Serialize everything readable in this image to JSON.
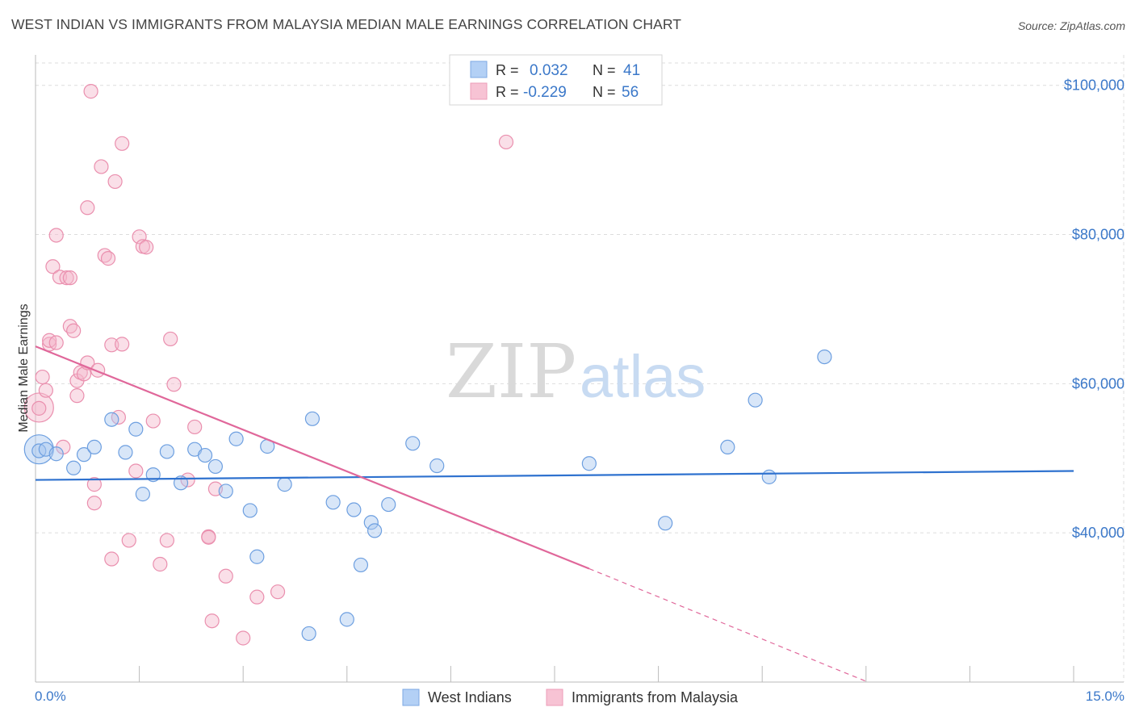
{
  "title": "WEST INDIAN VS IMMIGRANTS FROM MALAYSIA MEDIAN MALE EARNINGS CORRELATION CHART",
  "source": "Source: ZipAtlas.com",
  "watermark": {
    "zip": "ZIP",
    "atlas": "atlas"
  },
  "colors": {
    "blue_fill": "#a9c8f0",
    "blue_stroke": "#6d9fe0",
    "blue_line": "#2f72cf",
    "pink_fill": "#f5b8cb",
    "pink_stroke": "#ea8fae",
    "pink_line": "#e0679a",
    "tick_text": "#3b78c9",
    "grid": "#dddddd"
  },
  "legend": {
    "rows": [
      {
        "r_label": "R =",
        "r_value": "0.032",
        "n_label": "N =",
        "n_value": "41"
      },
      {
        "r_label": "R =",
        "r_value": "-0.229",
        "n_label": "N =",
        "n_value": "56"
      }
    ]
  },
  "chart_data": {
    "type": "scatter",
    "xlabel": "",
    "ylabel": "Median Male Earnings",
    "xlim": [
      0,
      15
    ],
    "ylim": [
      20000,
      103000
    ],
    "x_tick_labels": [
      "0.0%",
      "15.0%"
    ],
    "y_ticks": [
      40000,
      60000,
      80000,
      100000
    ],
    "y_tick_labels": [
      "$40,000",
      "$60,000",
      "$80,000",
      "$100,000"
    ],
    "grid": true,
    "legend_position": "top-center",
    "series": [
      {
        "name": "West Indians",
        "color": "blue",
        "trend": {
          "x": [
            0,
            15
          ],
          "y": [
            47100,
            48300
          ]
        },
        "points": [
          [
            0.05,
            51000
          ],
          [
            0.15,
            51200
          ],
          [
            0.3,
            50600
          ],
          [
            0.55,
            48700
          ],
          [
            0.7,
            50500
          ],
          [
            0.85,
            51500
          ],
          [
            1.1,
            55200
          ],
          [
            1.3,
            50800
          ],
          [
            1.45,
            53900
          ],
          [
            1.55,
            45200
          ],
          [
            1.7,
            47800
          ],
          [
            1.9,
            50900
          ],
          [
            2.1,
            46700
          ],
          [
            2.3,
            51200
          ],
          [
            2.45,
            50400
          ],
          [
            2.6,
            48900
          ],
          [
            2.75,
            45600
          ],
          [
            2.9,
            52600
          ],
          [
            3.1,
            43000
          ],
          [
            3.2,
            36800
          ],
          [
            3.35,
            51600
          ],
          [
            3.6,
            46500
          ],
          [
            3.95,
            26500
          ],
          [
            4.0,
            55300
          ],
          [
            4.3,
            44100
          ],
          [
            4.5,
            28400
          ],
          [
            4.6,
            43100
          ],
          [
            4.7,
            35700
          ],
          [
            4.85,
            41400
          ],
          [
            4.9,
            40300
          ],
          [
            5.1,
            43800
          ],
          [
            5.45,
            52000
          ],
          [
            5.8,
            49000
          ],
          [
            8.0,
            49300
          ],
          [
            9.1,
            41300
          ],
          [
            10.0,
            51500
          ],
          [
            10.4,
            57800
          ],
          [
            10.6,
            47500
          ],
          [
            11.4,
            63600
          ]
        ],
        "large_points": [
          [
            0.05,
            51200
          ]
        ]
      },
      {
        "name": "Immigrants from Malaysia",
        "color": "pink",
        "trend": {
          "x": [
            0,
            8.0
          ],
          "y": [
            65000,
            35200
          ]
        },
        "trend_dashed": {
          "x": [
            8.0,
            12.0
          ],
          "y": [
            35200,
            20100
          ]
        },
        "points": [
          [
            0.05,
            56700
          ],
          [
            0.1,
            60900
          ],
          [
            0.15,
            59100
          ],
          [
            0.2,
            65300
          ],
          [
            0.2,
            65800
          ],
          [
            0.25,
            75700
          ],
          [
            0.3,
            79900
          ],
          [
            0.3,
            65500
          ],
          [
            0.35,
            74300
          ],
          [
            0.4,
            51500
          ],
          [
            0.45,
            74200
          ],
          [
            0.5,
            74200
          ],
          [
            0.5,
            67700
          ],
          [
            0.55,
            67100
          ],
          [
            0.6,
            60400
          ],
          [
            0.6,
            58400
          ],
          [
            0.65,
            61500
          ],
          [
            0.7,
            61300
          ],
          [
            0.75,
            62800
          ],
          [
            0.75,
            83600
          ],
          [
            0.8,
            99200
          ],
          [
            0.85,
            46500
          ],
          [
            0.85,
            44000
          ],
          [
            0.9,
            61800
          ],
          [
            0.95,
            89100
          ],
          [
            1.0,
            77200
          ],
          [
            1.05,
            76800
          ],
          [
            1.1,
            65200
          ],
          [
            1.1,
            36500
          ],
          [
            1.15,
            87100
          ],
          [
            1.2,
            55500
          ],
          [
            1.25,
            92200
          ],
          [
            1.25,
            65300
          ],
          [
            1.35,
            39000
          ],
          [
            1.45,
            48300
          ],
          [
            1.5,
            79700
          ],
          [
            1.55,
            78400
          ],
          [
            1.6,
            78300
          ],
          [
            1.7,
            55000
          ],
          [
            1.8,
            35800
          ],
          [
            1.9,
            39000
          ],
          [
            1.95,
            66000
          ],
          [
            2.0,
            59900
          ],
          [
            2.2,
            47100
          ],
          [
            2.3,
            54200
          ],
          [
            2.5,
            39500
          ],
          [
            2.5,
            39400
          ],
          [
            2.55,
            28200
          ],
          [
            2.6,
            45900
          ],
          [
            2.75,
            34200
          ],
          [
            3.0,
            25900
          ],
          [
            3.2,
            31400
          ],
          [
            3.5,
            32100
          ],
          [
            6.8,
            92400
          ]
        ],
        "large_points": [
          [
            0.05,
            56800
          ]
        ]
      }
    ]
  },
  "bottom_legend": [
    {
      "label": "West Indians",
      "color": "blue"
    },
    {
      "label": "Immigrants from Malaysia",
      "color": "pink"
    }
  ]
}
